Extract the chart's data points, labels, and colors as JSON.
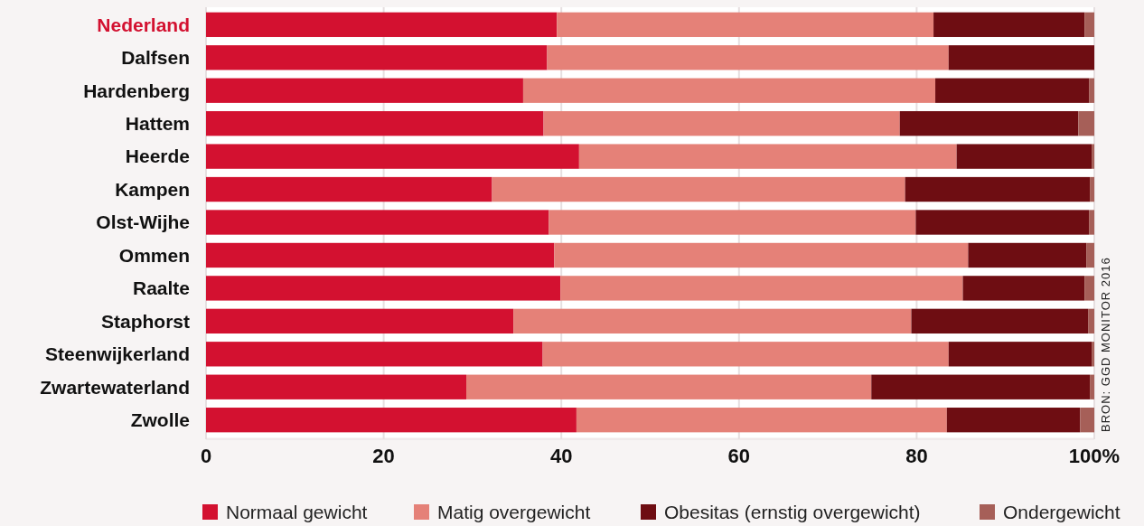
{
  "chart_data": {
    "type": "bar",
    "orientation": "horizontal",
    "stacked": true,
    "categories": [
      "Nederland",
      "Dalfsen",
      "Hardenberg",
      "Hattem",
      "Heerde",
      "Kampen",
      "Olst-Wijhe",
      "Ommen",
      "Raalte",
      "Staphorst",
      "Steenwijkerland",
      "Zwartewaterland",
      "Zwolle"
    ],
    "series": [
      {
        "name": "Normaal gewicht",
        "color": "#d31130",
        "values": [
          39.5,
          38.4,
          35.7,
          38.0,
          42.0,
          32.2,
          38.6,
          39.2,
          39.9,
          34.6,
          37.9,
          29.3,
          41.7
        ]
      },
      {
        "name": "Matig overgewicht",
        "color": "#e58178",
        "values": [
          42.4,
          45.2,
          46.4,
          40.1,
          42.5,
          46.5,
          41.3,
          46.6,
          45.3,
          44.8,
          45.7,
          45.6,
          41.7
        ]
      },
      {
        "name": "Obesitas (ernstig overgewicht)",
        "color": "#6e0d12",
        "values": [
          17.0,
          16.4,
          17.3,
          20.1,
          15.2,
          20.8,
          19.5,
          13.3,
          13.7,
          19.9,
          16.1,
          24.6,
          15.0
        ]
      },
      {
        "name": "Ondergewicht",
        "color": "#a65f58",
        "values": [
          1.1,
          0,
          0.6,
          1.8,
          0.3,
          0.5,
          0.6,
          0.9,
          1.1,
          0.7,
          0.3,
          0.5,
          1.6
        ]
      }
    ],
    "xlim": [
      0,
      100
    ],
    "xticks": [
      0,
      20,
      40,
      60,
      80,
      {
        "value": 100,
        "label": "100%"
      }
    ],
    "grid": "x",
    "legend": "bottom",
    "annotations": [
      "BRON: GGD MONITOR 2016"
    ]
  }
}
